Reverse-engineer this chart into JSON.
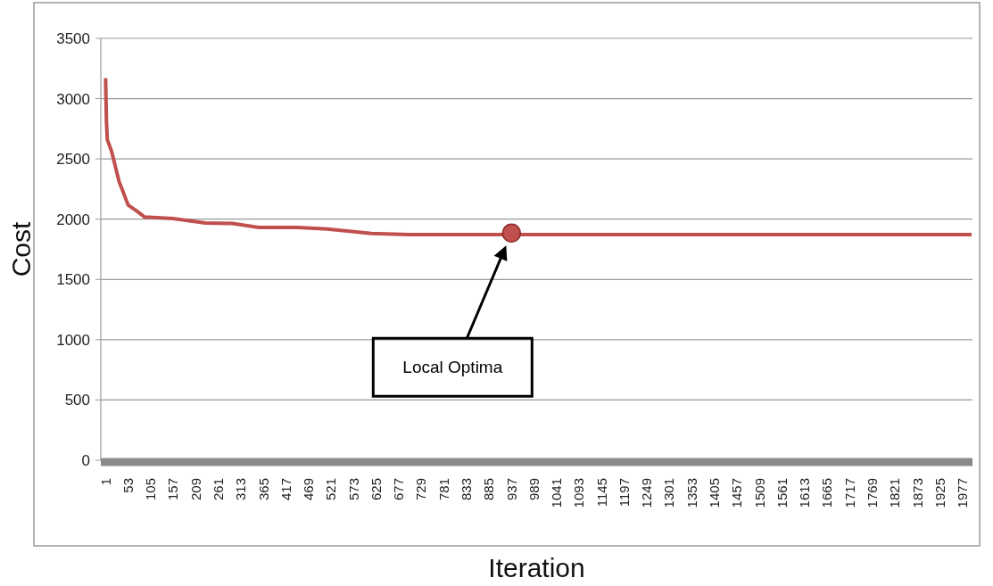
{
  "chart_data": {
    "type": "line",
    "xlabel": "Iteration",
    "ylabel": "Cost",
    "x": [
      1,
      3,
      5,
      15,
      32,
      53,
      73,
      91,
      156,
      231,
      293,
      354,
      443,
      512,
      614,
      700,
      800,
      937,
      1200,
      1500,
      1800,
      1998
    ],
    "series": [
      {
        "color": "#c0504d",
        "values": [
          3170,
          2808,
          2660,
          2561,
          2314,
          2117,
          2067,
          2018,
          2006,
          1969,
          1964,
          1932,
          1932,
          1919,
          1882,
          1873,
          1873,
          1873,
          1873,
          1873,
          1873,
          1873
        ]
      },
      {
        "type": "scatter",
        "color": "#c0504d",
        "x": [
          937
        ],
        "values": [
          1885
        ]
      }
    ],
    "annotations": [
      "Local Optima"
    ],
    "xlim": [
      -10,
      2000
    ],
    "ylim": [
      0,
      3500
    ],
    "xticks": [
      1,
      53,
      105,
      157,
      209,
      261,
      313,
      365,
      417,
      469,
      521,
      573,
      625,
      677,
      729,
      781,
      833,
      885,
      937,
      989,
      1041,
      1093,
      1145,
      1197,
      1249,
      1301,
      1353,
      1405,
      1457,
      1509,
      1561,
      1613,
      1665,
      1717,
      1769,
      1821,
      1873,
      1925,
      1977
    ],
    "yticks": [
      0,
      500,
      1000,
      1500,
      2000,
      2500,
      3000,
      3500
    ],
    "grid": "y",
    "line_style": "solid"
  }
}
